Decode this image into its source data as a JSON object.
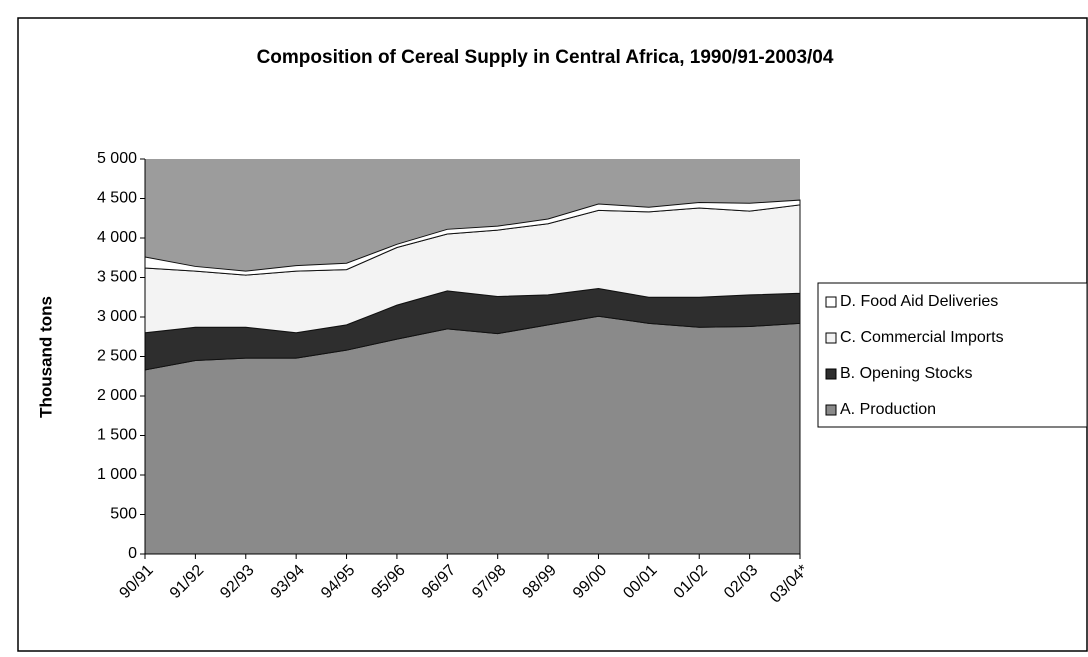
{
  "chart_data": {
    "type": "stacked_area",
    "title": "Composition of Cereal Supply in Central Africa, 1990/91-2003/04",
    "y_label": "Thousand tons",
    "categories": [
      "90/91",
      "91/92",
      "92/93",
      "93/94",
      "94/95",
      "95/96",
      "96/97",
      "97/98",
      "98/99",
      "99/00",
      "00/01",
      "01/02",
      "02/03",
      "03/04*"
    ],
    "series": [
      {
        "name": "A. Production",
        "color": "#8a8a8a",
        "values": [
          2330,
          2450,
          2480,
          2480,
          2580,
          2720,
          2850,
          2790,
          2900,
          3010,
          2920,
          2870,
          2880,
          2920
        ]
      },
      {
        "name": "B.  Opening Stocks",
        "color": "#2e2e2e",
        "values": [
          470,
          420,
          390,
          320,
          320,
          430,
          480,
          470,
          380,
          350,
          330,
          380,
          400,
          380
        ]
      },
      {
        "name": "C.  Commercial Imports",
        "color": "#f3f3f3",
        "values": [
          820,
          710,
          660,
          780,
          700,
          730,
          720,
          840,
          900,
          990,
          1080,
          1130,
          1060,
          1120
        ]
      },
      {
        "name": "D.    Food Aid  Deliveries",
        "color": "#ffffff",
        "values": [
          140,
          60,
          50,
          70,
          80,
          40,
          60,
          50,
          60,
          80,
          60,
          70,
          100,
          60
        ]
      }
    ],
    "ylim": [
      0,
      5000
    ],
    "yticks": [
      0,
      500,
      {
        "value": 1000,
        "label": "1 000"
      },
      {
        "value": 1500,
        "label": "1 500"
      },
      {
        "value": 2000,
        "label": "2 000"
      },
      {
        "value": 2500,
        "label": "2 500"
      },
      {
        "value": 3000,
        "label": "3 000"
      },
      {
        "value": 3500,
        "label": "3 500"
      },
      {
        "value": 4000,
        "label": "4 000"
      },
      {
        "value": 4500,
        "label": "4 500"
      },
      {
        "value": 5000,
        "label": "5 000"
      }
    ],
    "background": "#9c9c9c",
    "legend": "right"
  }
}
